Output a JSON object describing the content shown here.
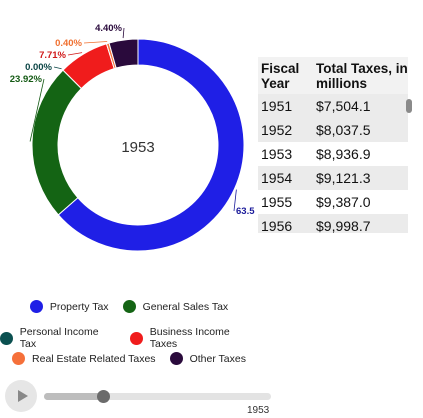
{
  "chart_data": {
    "type": "pie",
    "variant": "donut",
    "center_label": "1953",
    "slices": [
      {
        "name": "Property Tax",
        "value": 63.5,
        "label": "63.5",
        "color": "#1f1fe6"
      },
      {
        "name": "General Sales Tax",
        "value": 23.92,
        "label": "23.92%",
        "color": "#146414"
      },
      {
        "name": "Personal Income Tax",
        "value": 0.0,
        "label": "0.00%",
        "color": "#0b5050"
      },
      {
        "name": "Business Income Taxes",
        "value": 7.71,
        "label": "7.71%",
        "color": "#f01c1c"
      },
      {
        "name": "Real Estate Related Taxes",
        "value": 0.4,
        "label": "0.40%",
        "color": "#f5703a"
      },
      {
        "name": "Other Taxes",
        "value": 4.4,
        "label": "4.40%",
        "color": "#2a0a3c"
      }
    ],
    "label_colors": [
      "#1a1a9a",
      "#145a14",
      "#0b4545",
      "#d01818",
      "#f07030",
      "#2a0a3c"
    ]
  },
  "table": {
    "headers": [
      "Fiscal Year",
      "Total Taxes, in millions"
    ],
    "rows": [
      {
        "year": "1951",
        "total": "$7,504.1"
      },
      {
        "year": "1952",
        "total": "$8,037.5"
      },
      {
        "year": "1953",
        "total": "$8,936.9"
      },
      {
        "year": "1954",
        "total": "$9,121.3"
      },
      {
        "year": "1955",
        "total": "$9,387.0"
      },
      {
        "year": "1956",
        "total": "$9,998.7"
      }
    ]
  },
  "legend": [
    [
      {
        "name": "Property Tax",
        "color": "#1f1fe6"
      },
      {
        "name": "General Sales Tax",
        "color": "#146414"
      }
    ],
    [
      {
        "name": "Personal Income Tax",
        "color": "#0b5050"
      },
      {
        "name": "Business Income Taxes",
        "color": "#f01c1c"
      }
    ],
    [
      {
        "name": "Real Estate Related Taxes",
        "color": "#f5703a"
      },
      {
        "name": "Other Taxes",
        "color": "#2a0a3c"
      }
    ]
  ],
  "player": {
    "current_year": "1953",
    "progress": 0.26
  }
}
